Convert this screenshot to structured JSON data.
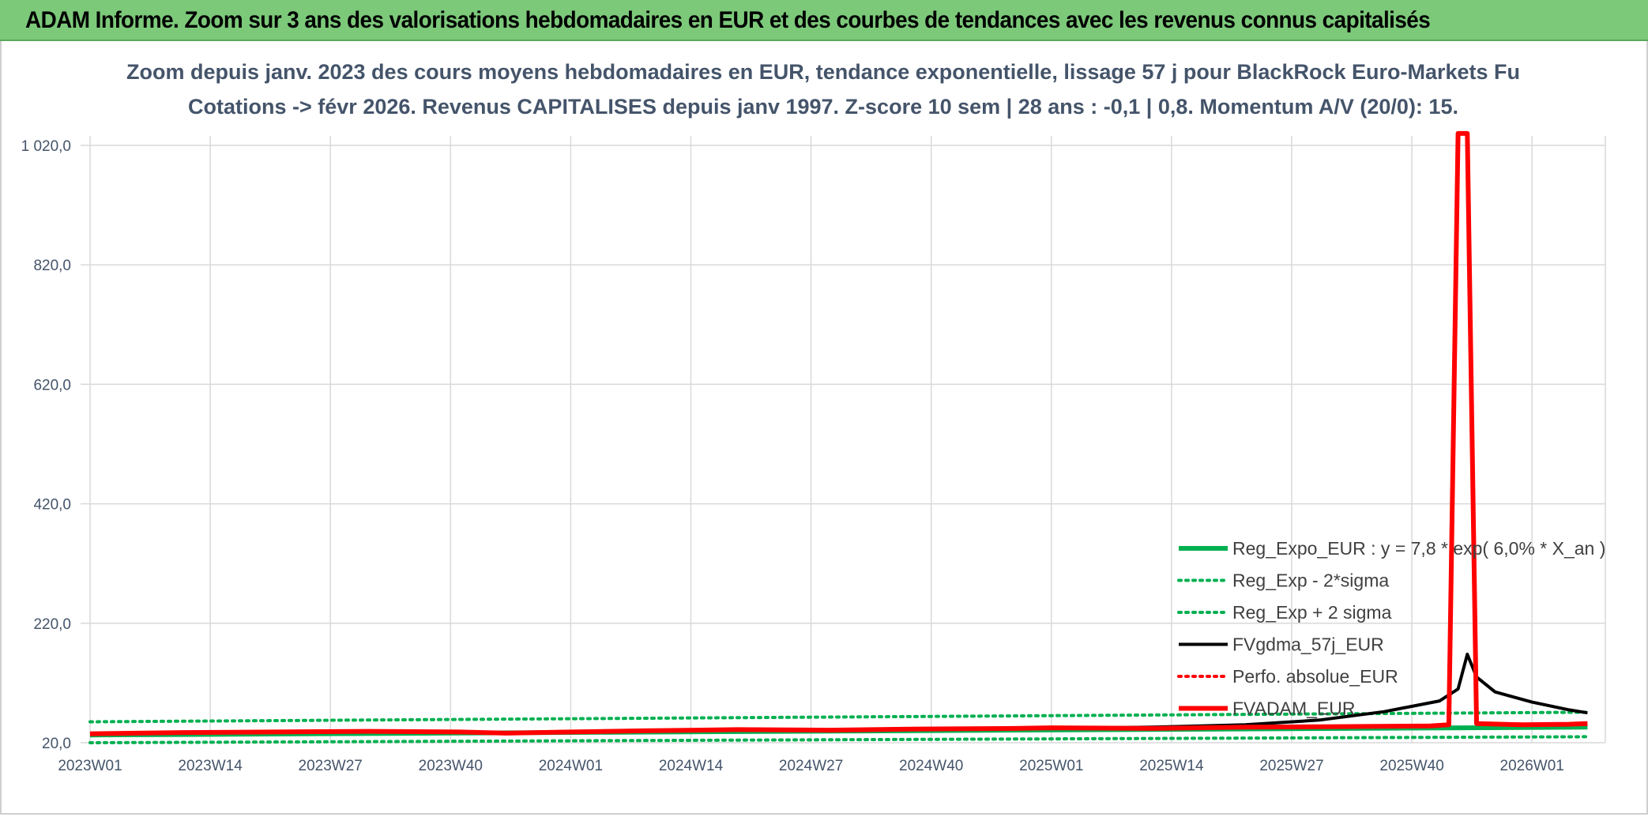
{
  "banner": {
    "title": "ADAM Informe. Zoom sur 3 ans des valorisations hebdomadaires en EUR et des courbes de tendances avec les revenus connus capitalisés"
  },
  "chart_data": {
    "type": "line",
    "title_line1": "Zoom depuis janv. 2023 des cours moyens hebdomadaires en EUR, tendance exponentielle, lissage 57 j pour BlackRock Euro-Markets Fu",
    "title_line2": "Cotations -> févr 2026. Revenus CAPITALISES depuis janv 1997. Z-score 10 sem | 28 ans : -0,1 | 0,8. Momentum A/V (20/0): 15.",
    "ylim": [
      20,
      1100
    ],
    "y_ticks": [
      20,
      220,
      420,
      620,
      820,
      1020
    ],
    "y_tick_labels": [
      "20,0",
      "220,0",
      "420,0",
      "620,0",
      "820,0",
      "1 020,0"
    ],
    "x_tick_labels": [
      "2023W01",
      "2023W14",
      "2023W27",
      "2023W40",
      "2024W01",
      "2024W14",
      "2024W27",
      "2024W40",
      "2025W01",
      "2025W14",
      "2025W27",
      "2025W40",
      "2026W01"
    ],
    "week_count": 163,
    "grid": true,
    "legend_position": "bottom-right",
    "series": [
      {
        "name": "Reg_Expo_EUR : y = 7,8 * exp( 6,0% *  X_an )",
        "color": "#00b050",
        "style": "solid-thick",
        "points": [
          [
            0,
            33
          ],
          [
            162,
            46
          ]
        ]
      },
      {
        "name": "Reg_Exp - 2*sigma",
        "color": "#00b050",
        "style": "dotted",
        "points": [
          [
            0,
            20
          ],
          [
            162,
            30
          ]
        ]
      },
      {
        "name": "Reg_Exp + 2 sigma",
        "color": "#00b050",
        "style": "dotted",
        "points": [
          [
            0,
            55
          ],
          [
            162,
            71
          ]
        ]
      },
      {
        "name": "FVgdma_57j_EUR",
        "color": "#000000",
        "style": "solid",
        "points": [
          [
            0,
            36
          ],
          [
            15,
            37
          ],
          [
            30,
            38
          ],
          [
            45,
            37
          ],
          [
            52,
            39
          ],
          [
            70,
            41
          ],
          [
            90,
            42
          ],
          [
            104,
            44
          ],
          [
            115,
            46
          ],
          [
            125,
            50
          ],
          [
            133,
            58
          ],
          [
            140,
            72
          ],
          [
            146,
            90
          ],
          [
            148,
            110
          ],
          [
            149,
            168
          ],
          [
            150,
            130
          ],
          [
            152,
            105
          ],
          [
            156,
            88
          ],
          [
            160,
            75
          ],
          [
            162,
            70
          ]
        ]
      },
      {
        "name": "Perfo. absolue_EUR",
        "color": "#ff0000",
        "style": "dotted",
        "points": []
      },
      {
        "name": "FVADAM_EUR",
        "color": "#ff0000",
        "style": "solid-thick",
        "points": [
          [
            0,
            35
          ],
          [
            10,
            37
          ],
          [
            20,
            38
          ],
          [
            30,
            39
          ],
          [
            40,
            38
          ],
          [
            45,
            36
          ],
          [
            52,
            38
          ],
          [
            60,
            40
          ],
          [
            70,
            42
          ],
          [
            80,
            41
          ],
          [
            90,
            43
          ],
          [
            100,
            44
          ],
          [
            104,
            45
          ],
          [
            115,
            44
          ],
          [
            125,
            46
          ],
          [
            135,
            47
          ],
          [
            145,
            48
          ],
          [
            147,
            50
          ],
          [
            148,
            1040
          ],
          [
            149,
            1040
          ],
          [
            150,
            52
          ],
          [
            155,
            50
          ],
          [
            160,
            51
          ],
          [
            162,
            52
          ]
        ]
      }
    ]
  },
  "colors": {
    "banner_bg": "#7cc97a",
    "title_text": "#44546a",
    "grid": "#d9d9d9"
  }
}
